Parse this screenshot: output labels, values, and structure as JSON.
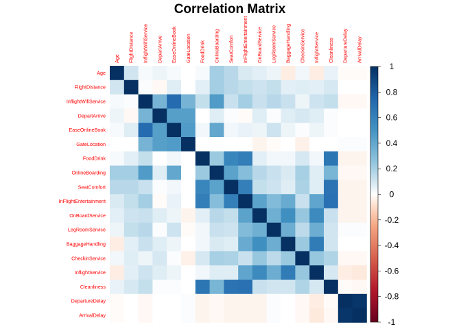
{
  "chart_data": {
    "type": "heatmap",
    "title": "Correlation Matrix",
    "variables": [
      "Age",
      "FlightDistance",
      "InflightWifiService",
      "DepartArrive",
      "EaseOnlineBook",
      "GateLocation",
      "FoodDrink",
      "OnlineBoarding",
      "SeatComfort",
      "InFlightEntertainment",
      "OnBoardService",
      "LegRoomService",
      "BaggageHandling",
      "CheckinService",
      "InflightService",
      "Cleanliness",
      "DepartureDelay",
      "ArrivalDelay"
    ],
    "column_labels": [
      "Age",
      "FlightDistance",
      "InflightWifiService",
      "DepartArrive",
      "EaseOnlineBook",
      "GateLocation",
      "FoodDrink",
      "OnlineBoarding",
      "SeatComfort",
      "InFlightEntertainment",
      "OnBoardService",
      "LegRoomService",
      "BaggageHandling",
      "CheckinService",
      "InflightService",
      "Cleanliness",
      "DepartureDelay",
      "ArrivalDelay"
    ],
    "row_labels": [
      "Age",
      "FlightDistance",
      "InflightWifiService",
      "DepartArrive",
      "EaseOnlineBook",
      "GateLocation",
      "FoodDrink",
      "OnlineBoarding",
      "SeatComfort",
      "InFlightEntertainment",
      "OnBoardService",
      "LegRoomService",
      "BaggageHandling",
      "CheckinService",
      "InflightService",
      "Cleanliness",
      "DepartureDelay",
      "ArrivalDelay"
    ],
    "matrix": [
      [
        1.0,
        0.1,
        0.02,
        0.04,
        0.02,
        0.0,
        0.02,
        0.21,
        0.16,
        0.08,
        0.06,
        0.04,
        -0.05,
        0.03,
        -0.05,
        0.05,
        -0.01,
        -0.01
      ],
      [
        0.1,
        1.0,
        0.01,
        -0.02,
        0.07,
        0.0,
        0.06,
        0.21,
        0.16,
        0.13,
        0.11,
        0.13,
        0.06,
        0.07,
        0.06,
        0.09,
        0.0,
        0.0
      ],
      [
        0.02,
        0.01,
        1.0,
        0.34,
        0.72,
        0.34,
        0.13,
        0.46,
        0.12,
        0.21,
        0.12,
        0.16,
        0.12,
        0.04,
        0.11,
        0.13,
        -0.02,
        -0.02
      ],
      [
        0.04,
        -0.02,
        0.34,
        1.0,
        0.44,
        0.44,
        0.0,
        0.07,
        0.01,
        -0.01,
        0.07,
        0.01,
        0.07,
        0.09,
        0.07,
        0.01,
        0.0,
        0.0
      ],
      [
        0.02,
        0.07,
        0.72,
        0.44,
        1.0,
        0.46,
        0.03,
        0.4,
        0.03,
        0.05,
        0.04,
        0.11,
        0.04,
        0.01,
        0.04,
        0.01,
        0.0,
        0.0
      ],
      [
        0.0,
        0.0,
        0.34,
        0.44,
        0.46,
        1.0,
        0.0,
        0.0,
        0.0,
        0.0,
        -0.03,
        -0.01,
        0.0,
        -0.04,
        0.0,
        0.0,
        0.01,
        0.01
      ],
      [
        0.02,
        0.06,
        0.13,
        0.0,
        0.03,
        0.0,
        1.0,
        0.23,
        0.57,
        0.62,
        0.06,
        0.03,
        0.03,
        0.09,
        0.03,
        0.66,
        -0.03,
        -0.03
      ],
      [
        0.21,
        0.21,
        0.46,
        0.07,
        0.4,
        0.0,
        0.23,
        1.0,
        0.42,
        0.29,
        0.16,
        0.12,
        0.08,
        0.2,
        0.07,
        0.33,
        -0.02,
        -0.02
      ],
      [
        0.16,
        0.16,
        0.12,
        0.01,
        0.03,
        0.0,
        0.57,
        0.42,
        1.0,
        0.61,
        0.13,
        0.11,
        0.07,
        0.19,
        0.07,
        0.68,
        -0.03,
        -0.03
      ],
      [
        0.08,
        0.13,
        0.21,
        -0.01,
        0.05,
        0.0,
        0.62,
        0.29,
        0.61,
        1.0,
        0.42,
        0.3,
        0.38,
        0.12,
        0.41,
        0.69,
        -0.03,
        -0.03
      ],
      [
        0.06,
        0.11,
        0.12,
        0.07,
        0.04,
        -0.03,
        0.06,
        0.16,
        0.13,
        0.42,
        1.0,
        0.36,
        0.52,
        0.24,
        0.55,
        0.12,
        -0.03,
        -0.03
      ],
      [
        0.04,
        0.13,
        0.16,
        0.01,
        0.11,
        -0.01,
        0.03,
        0.12,
        0.11,
        0.3,
        0.36,
        1.0,
        0.37,
        0.15,
        0.37,
        0.1,
        0.01,
        0.01
      ],
      [
        -0.05,
        0.06,
        0.12,
        0.07,
        0.04,
        0.0,
        0.03,
        0.08,
        0.07,
        0.38,
        0.52,
        0.37,
        1.0,
        0.23,
        0.63,
        0.1,
        0.0,
        0.0
      ],
      [
        0.03,
        0.07,
        0.04,
        0.09,
        0.01,
        -0.04,
        0.09,
        0.2,
        0.19,
        0.12,
        0.24,
        0.15,
        0.23,
        1.0,
        0.24,
        0.18,
        -0.02,
        -0.02
      ],
      [
        -0.05,
        0.06,
        0.11,
        0.07,
        0.04,
        0.0,
        0.03,
        0.07,
        0.07,
        0.41,
        0.55,
        0.37,
        0.63,
        0.24,
        1.0,
        0.09,
        -0.05,
        -0.06
      ],
      [
        0.05,
        0.09,
        0.13,
        0.01,
        0.01,
        0.0,
        0.66,
        0.33,
        0.68,
        0.69,
        0.12,
        0.1,
        0.1,
        0.18,
        0.09,
        1.0,
        -0.01,
        -0.02
      ],
      [
        -0.01,
        0.0,
        -0.02,
        0.0,
        0.0,
        0.01,
        -0.03,
        -0.02,
        -0.03,
        -0.03,
        -0.03,
        0.01,
        0.0,
        -0.02,
        -0.05,
        -0.01,
        1.0,
        0.97
      ],
      [
        -0.01,
        0.0,
        -0.02,
        0.0,
        0.0,
        0.01,
        -0.03,
        -0.02,
        -0.03,
        -0.03,
        -0.03,
        0.01,
        0.0,
        -0.02,
        -0.06,
        -0.02,
        0.97,
        1.0
      ]
    ],
    "value_range": [
      -1,
      1
    ],
    "colorbar_ticks": [
      "1",
      "0.8",
      "0.6",
      "0.4",
      "0.2",
      "0",
      "-0.2",
      "-0.4",
      "-0.6",
      "-0.8",
      "-1"
    ],
    "colors": {
      "negative": "#67001F",
      "neutral": "#FFFFFF",
      "positive": "#053061",
      "label": "#FF0000"
    }
  }
}
